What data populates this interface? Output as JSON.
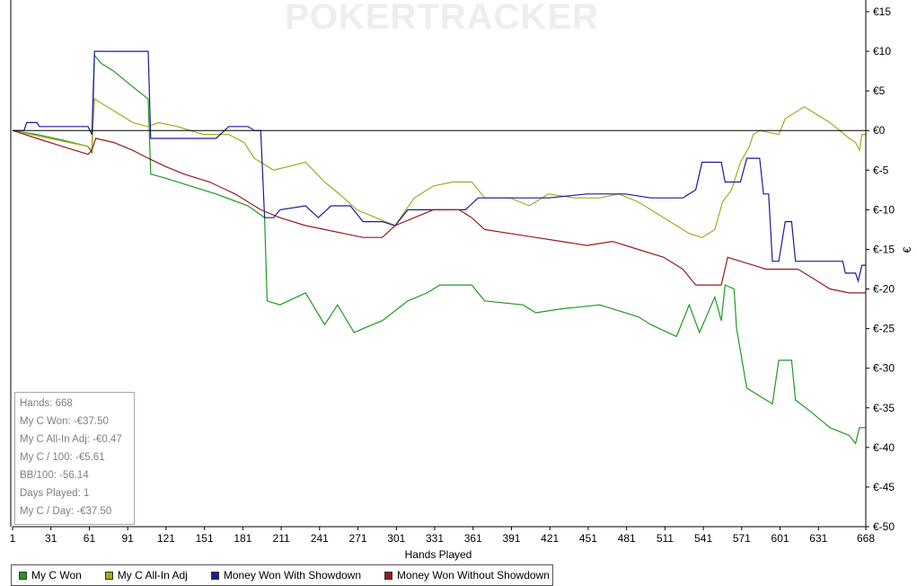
{
  "watermark": "POKERTRACKER",
  "chart_data": {
    "type": "line",
    "xlabel": "Hands Played",
    "ylabel": "€",
    "xlim": [
      1,
      668
    ],
    "ylim": [
      -50,
      15
    ],
    "x_ticks": [
      "1",
      "31",
      "61",
      "91",
      "121",
      "151",
      "181",
      "211",
      "241",
      "271",
      "301",
      "331",
      "361",
      "391",
      "421",
      "451",
      "481",
      "511",
      "541",
      "571",
      "601",
      "631",
      "668"
    ],
    "y_ticks": [
      "€15",
      "€10",
      "€5",
      "€0",
      "€-5",
      "€-10",
      "€-15",
      "€-20",
      "€-25",
      "€-30",
      "€-35",
      "€-40",
      "€-45",
      "€-50"
    ],
    "grid": false,
    "legend_position": "bottom",
    "series": [
      {
        "name": "My C Won",
        "color": "#1f9a1f",
        "points": [
          [
            1,
            0
          ],
          [
            20,
            -0.5
          ],
          [
            40,
            -1.2
          ],
          [
            60,
            -2
          ],
          [
            63,
            -2.8
          ],
          [
            65,
            9.5
          ],
          [
            70,
            8.5
          ],
          [
            80,
            7.5
          ],
          [
            95,
            5.5
          ],
          [
            107,
            4
          ],
          [
            109,
            -5.5
          ],
          [
            120,
            -6
          ],
          [
            140,
            -7
          ],
          [
            160,
            -8
          ],
          [
            185,
            -9.5
          ],
          [
            198,
            -11
          ],
          [
            200,
            -21.5
          ],
          [
            210,
            -22
          ],
          [
            230,
            -20.5
          ],
          [
            245,
            -24.5
          ],
          [
            255,
            -22
          ],
          [
            268,
            -25.5
          ],
          [
            275,
            -25
          ],
          [
            290,
            -24
          ],
          [
            310,
            -21.5
          ],
          [
            325,
            -20.5
          ],
          [
            335,
            -19.5
          ],
          [
            360,
            -19.5
          ],
          [
            370,
            -21.5
          ],
          [
            400,
            -22
          ],
          [
            410,
            -23
          ],
          [
            430,
            -22.5
          ],
          [
            460,
            -22
          ],
          [
            490,
            -23.5
          ],
          [
            500,
            -24.5
          ],
          [
            520,
            -26
          ],
          [
            530,
            -22
          ],
          [
            538,
            -25.5
          ],
          [
            550,
            -21
          ],
          [
            555,
            -24
          ],
          [
            558,
            -19.5
          ],
          [
            565,
            -20
          ],
          [
            567,
            -25
          ],
          [
            575,
            -32.5
          ],
          [
            595,
            -34.5
          ],
          [
            600,
            -29
          ],
          [
            610,
            -29
          ],
          [
            613,
            -34
          ],
          [
            625,
            -35.5
          ],
          [
            640,
            -37.5
          ],
          [
            655,
            -38.5
          ],
          [
            660,
            -39.5
          ],
          [
            663,
            -37.5
          ],
          [
            668,
            -37.5
          ]
        ]
      },
      {
        "name": "My C All-In Adj",
        "color": "#a8a820",
        "points": [
          [
            1,
            0
          ],
          [
            30,
            -1
          ],
          [
            60,
            -2
          ],
          [
            63,
            -2.5
          ],
          [
            65,
            4
          ],
          [
            80,
            2.5
          ],
          [
            95,
            1
          ],
          [
            107,
            0.5
          ],
          [
            115,
            1
          ],
          [
            130,
            0.5
          ],
          [
            150,
            -0.5
          ],
          [
            170,
            -0.5
          ],
          [
            182,
            -1.5
          ],
          [
            190,
            -3.5
          ],
          [
            205,
            -5
          ],
          [
            230,
            -4
          ],
          [
            245,
            -6.5
          ],
          [
            260,
            -8.5
          ],
          [
            270,
            -10
          ],
          [
            285,
            -11
          ],
          [
            300,
            -12
          ],
          [
            315,
            -8.5
          ],
          [
            330,
            -7
          ],
          [
            345,
            -6.5
          ],
          [
            360,
            -6.5
          ],
          [
            370,
            -8.5
          ],
          [
            390,
            -8.5
          ],
          [
            405,
            -9.5
          ],
          [
            420,
            -8
          ],
          [
            440,
            -8.5
          ],
          [
            460,
            -8.5
          ],
          [
            475,
            -8
          ],
          [
            490,
            -9
          ],
          [
            500,
            -10
          ],
          [
            520,
            -12
          ],
          [
            530,
            -13
          ],
          [
            540,
            -13.5
          ],
          [
            550,
            -12.5
          ],
          [
            556,
            -9
          ],
          [
            563,
            -7.5
          ],
          [
            570,
            -4
          ],
          [
            577,
            -2
          ],
          [
            580,
            -0.5
          ],
          [
            585,
            0
          ],
          [
            600,
            -0.5
          ],
          [
            605,
            1.5
          ],
          [
            620,
            3
          ],
          [
            640,
            1
          ],
          [
            655,
            -1
          ],
          [
            660,
            -1.5
          ],
          [
            663,
            -2.5
          ],
          [
            665,
            -0.5
          ],
          [
            668,
            -0.5
          ]
        ]
      },
      {
        "name": "Money Won With Showdown",
        "color": "#1a1a9a",
        "points": [
          [
            1,
            0
          ],
          [
            10,
            0
          ],
          [
            12,
            1
          ],
          [
            20,
            1
          ],
          [
            22,
            0.5
          ],
          [
            40,
            0.5
          ],
          [
            60,
            0.5
          ],
          [
            63,
            -0.5
          ],
          [
            65,
            10
          ],
          [
            107,
            10
          ],
          [
            109,
            -1
          ],
          [
            140,
            -1
          ],
          [
            160,
            -1
          ],
          [
            170,
            0.5
          ],
          [
            185,
            0.5
          ],
          [
            190,
            0
          ],
          [
            195,
            0
          ],
          [
            198,
            -11
          ],
          [
            205,
            -11
          ],
          [
            210,
            -10
          ],
          [
            230,
            -9.5
          ],
          [
            240,
            -11
          ],
          [
            250,
            -9.5
          ],
          [
            265,
            -9.5
          ],
          [
            275,
            -11.5
          ],
          [
            290,
            -11.5
          ],
          [
            300,
            -12
          ],
          [
            310,
            -10
          ],
          [
            320,
            -10
          ],
          [
            340,
            -10
          ],
          [
            355,
            -10
          ],
          [
            365,
            -8.5
          ],
          [
            395,
            -8.5
          ],
          [
            420,
            -8.5
          ],
          [
            450,
            -8
          ],
          [
            480,
            -8
          ],
          [
            500,
            -8.5
          ],
          [
            525,
            -8.5
          ],
          [
            535,
            -7.5
          ],
          [
            540,
            -4
          ],
          [
            555,
            -4
          ],
          [
            558,
            -6.5
          ],
          [
            570,
            -6.5
          ],
          [
            575,
            -3.5
          ],
          [
            585,
            -3.5
          ],
          [
            588,
            -8
          ],
          [
            592,
            -8
          ],
          [
            595,
            -16.5
          ],
          [
            600,
            -16.5
          ],
          [
            605,
            -11.5
          ],
          [
            610,
            -11.5
          ],
          [
            613,
            -16.5
          ],
          [
            650,
            -16.5
          ],
          [
            652,
            -18
          ],
          [
            660,
            -18
          ],
          [
            662,
            -19
          ],
          [
            665,
            -17
          ],
          [
            668,
            -17
          ]
        ]
      },
      {
        "name": "Money Won Without Showdown",
        "color": "#9a1a1a",
        "points": [
          [
            1,
            0
          ],
          [
            20,
            -1
          ],
          [
            40,
            -2
          ],
          [
            60,
            -3
          ],
          [
            63,
            -2.5
          ],
          [
            66,
            -1
          ],
          [
            80,
            -1.5
          ],
          [
            95,
            -2.5
          ],
          [
            107,
            -3.5
          ],
          [
            120,
            -4.5
          ],
          [
            135,
            -5.5
          ],
          [
            155,
            -6.5
          ],
          [
            175,
            -8
          ],
          [
            195,
            -10
          ],
          [
            210,
            -11
          ],
          [
            230,
            -12
          ],
          [
            245,
            -12.5
          ],
          [
            260,
            -13
          ],
          [
            275,
            -13.5
          ],
          [
            290,
            -13.5
          ],
          [
            300,
            -12
          ],
          [
            315,
            -11
          ],
          [
            330,
            -10
          ],
          [
            350,
            -10
          ],
          [
            360,
            -11
          ],
          [
            370,
            -12.5
          ],
          [
            390,
            -13
          ],
          [
            410,
            -13.5
          ],
          [
            430,
            -14
          ],
          [
            450,
            -14.5
          ],
          [
            470,
            -14
          ],
          [
            490,
            -15
          ],
          [
            510,
            -16
          ],
          [
            525,
            -17.5
          ],
          [
            535,
            -19.5
          ],
          [
            545,
            -19.5
          ],
          [
            555,
            -19.5
          ],
          [
            560,
            -16
          ],
          [
            570,
            -16.5
          ],
          [
            580,
            -17
          ],
          [
            590,
            -17.5
          ],
          [
            600,
            -17.5
          ],
          [
            615,
            -17.5
          ],
          [
            625,
            -18.5
          ],
          [
            640,
            -20
          ],
          [
            655,
            -20.5
          ],
          [
            668,
            -20.5
          ]
        ]
      }
    ]
  },
  "stats_box": {
    "lines": [
      "Hands: 668",
      "My C Won: -€37.50",
      "My C All-In Adj: -€0.47",
      "My C / 100: -€5.61",
      "BB/100: -56.14",
      "Days Played: 1",
      "My C / Day: -€37.50"
    ]
  }
}
